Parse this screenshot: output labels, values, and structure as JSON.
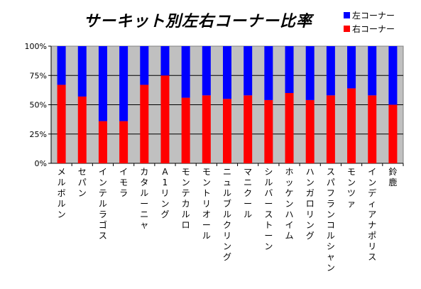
{
  "chart_data": {
    "type": "bar",
    "stacked": true,
    "title": "サーキット別左右コーナー比率",
    "categories": [
      "メルボルン",
      "セパン",
      "インテルラゴス",
      "イモラ",
      "カタルーニャ",
      "A1リング",
      "モンテカルロ",
      "モントリオール",
      "ニュルブルクリング",
      "マニクール",
      "シルバーストーン",
      "ホッケンハイム",
      "ハンガロリング",
      "スパフランコルシャン",
      "モンツァ",
      "インディアナポリス",
      "鈴鹿"
    ],
    "series": [
      {
        "name": "右コーナー",
        "color": "#ff0000",
        "values": [
          67,
          57,
          36,
          36,
          67,
          75,
          56,
          58,
          55,
          58,
          54,
          60,
          54,
          58,
          64,
          58,
          50
        ]
      },
      {
        "name": "左コーナー",
        "color": "#0000ff",
        "values": [
          33,
          43,
          64,
          64,
          33,
          25,
          44,
          42,
          45,
          42,
          46,
          40,
          46,
          42,
          36,
          42,
          50
        ]
      }
    ],
    "y_ticks": [
      "0%",
      "25%",
      "50%",
      "75%",
      "100%"
    ],
    "ylim": [
      0,
      100
    ],
    "grid": true,
    "plot_background": "#c0c0c0",
    "legend_position": "top-right"
  }
}
